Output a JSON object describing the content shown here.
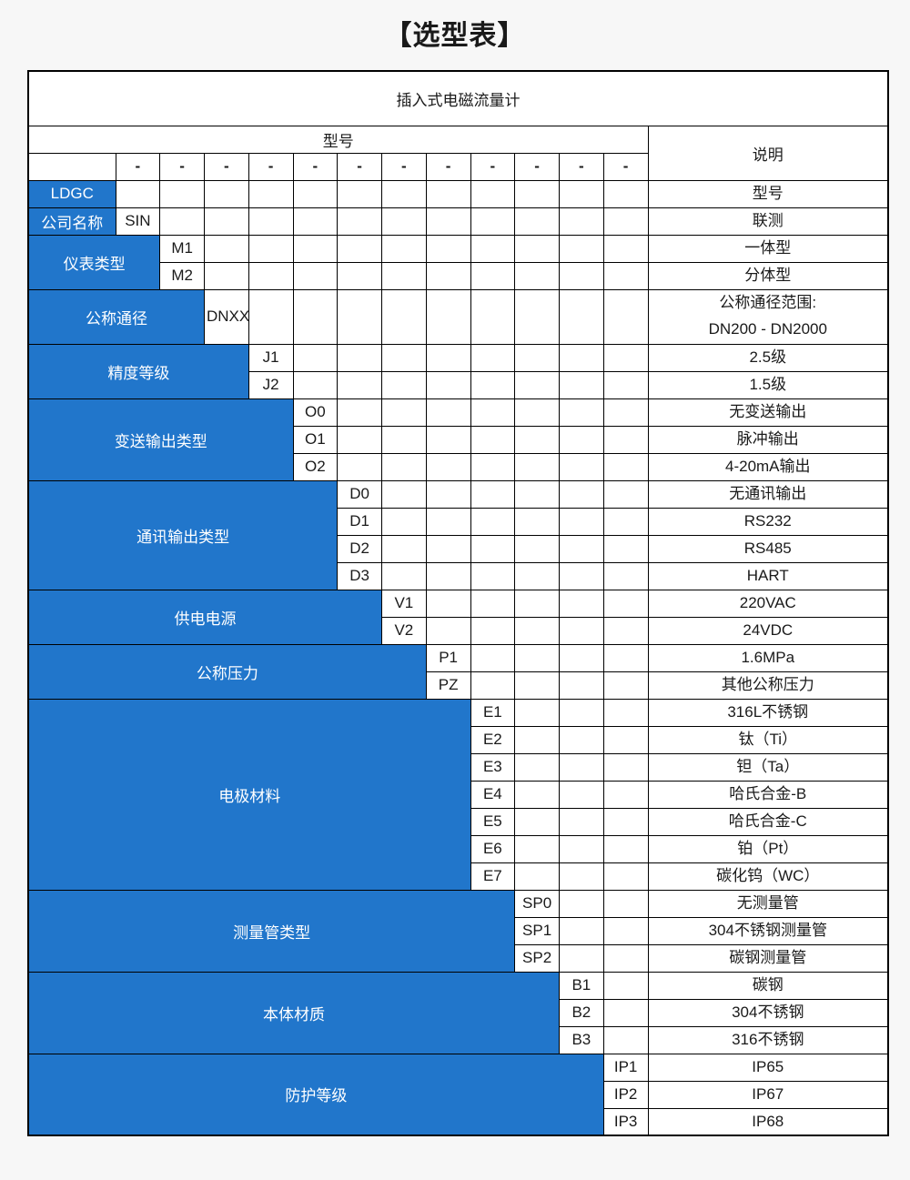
{
  "page": {
    "title": "【选型表】"
  },
  "colors": {
    "accent": "#2176cb",
    "page_bg": "#f7f7f7",
    "border": "#000000",
    "text": "#1a1a1a",
    "on_accent": "#ffffff"
  },
  "table": {
    "product_name": "插入式电磁流量计",
    "model_header": "型号",
    "desc_header": "说明",
    "dash": "-",
    "code_columns": 12,
    "sections": [
      {
        "label": "LDGC",
        "code_col": 0,
        "options": [
          {
            "code": "",
            "desc": "型号"
          }
        ]
      },
      {
        "label": "公司名称",
        "code_col": 1,
        "options": [
          {
            "code": "SIN",
            "desc": "联测"
          }
        ]
      },
      {
        "label": "仪表类型",
        "code_col": 2,
        "options": [
          {
            "code": "M1",
            "desc": "一体型"
          },
          {
            "code": "M2",
            "desc": "分体型"
          }
        ]
      },
      {
        "label": "公称通径",
        "code_col": 3,
        "tall": true,
        "options": [
          {
            "code": "DNXX",
            "desc": "公称通径范围:\nDN200 - DN2000"
          }
        ]
      },
      {
        "label": "精度等级",
        "code_col": 4,
        "options": [
          {
            "code": "J1",
            "desc": "2.5级"
          },
          {
            "code": "J2",
            "desc": "1.5级"
          }
        ]
      },
      {
        "label": "变送输出类型",
        "code_col": 5,
        "options": [
          {
            "code": "O0",
            "desc": "无变送输出"
          },
          {
            "code": "O1",
            "desc": "脉冲输出"
          },
          {
            "code": "O2",
            "desc": "4-20mA输出"
          }
        ]
      },
      {
        "label": "通讯输出类型",
        "code_col": 6,
        "options": [
          {
            "code": "D0",
            "desc": "无通讯输出"
          },
          {
            "code": "D1",
            "desc": "RS232"
          },
          {
            "code": "D2",
            "desc": "RS485"
          },
          {
            "code": "D3",
            "desc": "HART"
          }
        ]
      },
      {
        "label": "供电电源",
        "code_col": 7,
        "options": [
          {
            "code": "V1",
            "desc": "220VAC"
          },
          {
            "code": "V2",
            "desc": "24VDC"
          }
        ]
      },
      {
        "label": "公称压力",
        "code_col": 8,
        "options": [
          {
            "code": "P1",
            "desc": "1.6MPa"
          },
          {
            "code": "PZ",
            "desc": "其他公称压力"
          }
        ]
      },
      {
        "label": "电极材料",
        "code_col": 9,
        "options": [
          {
            "code": "E1",
            "desc": "316L不锈钢"
          },
          {
            "code": "E2",
            "desc": "钛（Ti）"
          },
          {
            "code": "E3",
            "desc": "钽（Ta）"
          },
          {
            "code": "E4",
            "desc": "哈氏合金-B"
          },
          {
            "code": "E5",
            "desc": "哈氏合金-C"
          },
          {
            "code": "E6",
            "desc": "铂（Pt）"
          },
          {
            "code": "E7",
            "desc": "碳化钨（WC）"
          }
        ]
      },
      {
        "label": "测量管类型",
        "code_col": 10,
        "options": [
          {
            "code": "SP0",
            "desc": "无测量管"
          },
          {
            "code": "SP1",
            "desc": "304不锈钢测量管"
          },
          {
            "code": "SP2",
            "desc": "碳钢测量管"
          }
        ]
      },
      {
        "label": "本体材质",
        "code_col": 11,
        "options": [
          {
            "code": "B1",
            "desc": "碳钢"
          },
          {
            "code": "B2",
            "desc": "304不锈钢"
          },
          {
            "code": "B3",
            "desc": "316不锈钢"
          }
        ]
      },
      {
        "label": "防护等级",
        "code_col": 12,
        "options": [
          {
            "code": "IP1",
            "desc": "IP65"
          },
          {
            "code": "IP2",
            "desc": "IP67"
          },
          {
            "code": "IP3",
            "desc": "IP68"
          }
        ]
      }
    ]
  }
}
